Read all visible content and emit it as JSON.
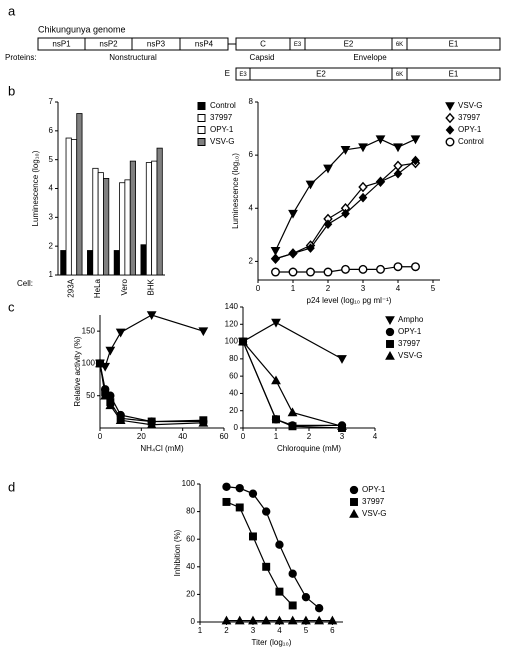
{
  "panel_labels": [
    "a",
    "b",
    "c",
    "d"
  ],
  "genome": {
    "title": "Chikungunya genome",
    "boxes": [
      "nsP1",
      "nsP2",
      "nsP3",
      "nsP4",
      "C",
      "E3",
      "E2",
      "6K",
      "E1"
    ],
    "row_label": "Proteins:",
    "groups": [
      "Nonstructural",
      "Capsid",
      "Envelope"
    ],
    "envelope_row": {
      "label": "E",
      "boxes": [
        "E3",
        "E2",
        "6K",
        "E1"
      ]
    }
  },
  "chart_data": [
    {
      "type": "bar",
      "ylabel": "Luminescence (log₁₀)",
      "xlabel": "Cell:",
      "categories": [
        "293A",
        "HeLa",
        "Vero",
        "BHK"
      ],
      "series": [
        {
          "name": "Control",
          "color": "#000000",
          "values": [
            1.85,
            1.85,
            1.85,
            2.05
          ]
        },
        {
          "name": "37997",
          "color": "#ffffff",
          "values": [
            5.75,
            4.7,
            4.2,
            4.9
          ]
        },
        {
          "name": "OPY-1",
          "color": "#ffffff",
          "values": [
            5.7,
            4.55,
            4.3,
            4.95
          ]
        },
        {
          "name": "VSV-G",
          "color": "#808080",
          "values": [
            6.6,
            4.35,
            4.95,
            5.4
          ]
        }
      ],
      "ylim": [
        1,
        7
      ],
      "yticks": [
        1,
        2,
        3,
        4,
        5,
        6,
        7
      ],
      "legend": "right"
    },
    {
      "type": "scatter",
      "xlabel": "p24 level (log₁₀ pg ml⁻¹)",
      "ylabel": "Luminescence (log₁₀)",
      "x": [
        0.5,
        1,
        1.5,
        2,
        2.5,
        3,
        3.5,
        4,
        4.5
      ],
      "series": [
        {
          "name": "VSV-G",
          "marker": "triangle-down",
          "color": "#000000",
          "values": [
            2.4,
            3.8,
            4.9,
            5.5,
            6.2,
            6.3,
            6.6,
            6.3,
            6.6
          ]
        },
        {
          "name": "37997",
          "marker": "diamond-open",
          "color": "#000000",
          "values": [
            2.1,
            2.3,
            2.6,
            3.6,
            4.0,
            4.8,
            5.0,
            5.6,
            5.7
          ]
        },
        {
          "name": "OPY-1",
          "marker": "diamond",
          "color": "#000000",
          "values": [
            2.1,
            2.3,
            2.5,
            3.4,
            3.8,
            4.4,
            5.0,
            5.3,
            5.8
          ]
        },
        {
          "name": "Control",
          "marker": "circle-open",
          "color": "#000000",
          "values": [
            1.6,
            1.6,
            1.6,
            1.6,
            1.7,
            1.7,
            1.7,
            1.8,
            1.8
          ]
        }
      ],
      "xlim": [
        0,
        5.2
      ],
      "ylim": [
        1.3,
        8
      ],
      "xticks": [
        0,
        1,
        2,
        3,
        4,
        5
      ],
      "yticks": [
        2,
        4,
        6,
        8
      ],
      "legend": "right"
    },
    {
      "type": "scatter",
      "xlabel": "NH₄Cl (mM)",
      "ylabel": "Relative activity (%)",
      "series": [
        {
          "marker": "triangle-down",
          "color": "#000000",
          "x": [
            0,
            2.5,
            5,
            10,
            25,
            50
          ],
          "values": [
            100,
            95,
            120,
            148,
            175,
            150
          ]
        },
        {
          "marker": "circle",
          "color": "#000000",
          "x": [
            0,
            2.5,
            5,
            10,
            25,
            50
          ],
          "values": [
            100,
            60,
            50,
            20,
            10,
            10
          ]
        },
        {
          "marker": "square",
          "color": "#000000",
          "x": [
            0,
            2.5,
            5,
            10,
            25,
            50
          ],
          "values": [
            100,
            55,
            40,
            15,
            10,
            12
          ]
        },
        {
          "marker": "triangle",
          "color": "#000000",
          "x": [
            0,
            2.5,
            5,
            10,
            25,
            50
          ],
          "values": [
            100,
            50,
            35,
            12,
            5,
            8
          ]
        }
      ],
      "xlim": [
        0,
        60
      ],
      "ylim": [
        0,
        175
      ],
      "xticks": [
        0,
        20,
        40,
        60
      ],
      "yticks": [
        50,
        100,
        150
      ]
    },
    {
      "type": "scatter",
      "xlabel": "Chloroquine (mM)",
      "series": [
        {
          "name": "Ampho",
          "marker": "triangle-down",
          "color": "#000000",
          "x": [
            0,
            1,
            3
          ],
          "values": [
            100,
            122,
            80
          ]
        },
        {
          "name": "OPY-1",
          "marker": "circle",
          "color": "#000000",
          "x": [
            0,
            1,
            1.5,
            3
          ],
          "values": [
            100,
            10,
            3,
            3
          ]
        },
        {
          "name": "37997",
          "marker": "square",
          "color": "#000000",
          "x": [
            0,
            1,
            1.5,
            3
          ],
          "values": [
            100,
            10,
            2,
            0
          ]
        },
        {
          "name": "VSV-G",
          "marker": "triangle",
          "color": "#000000",
          "x": [
            0,
            1,
            1.5,
            3
          ],
          "values": [
            100,
            55,
            18,
            2
          ]
        }
      ],
      "xlim": [
        0,
        4
      ],
      "ylim": [
        0,
        140
      ],
      "xticks": [
        0,
        1,
        2,
        3,
        4
      ],
      "yticks": [
        0,
        20,
        40,
        60,
        80,
        100,
        120,
        140
      ],
      "legend": "right"
    },
    {
      "type": "scatter",
      "xlabel": "Titer (log₁₀)",
      "ylabel": "Inhibition (%)",
      "series": [
        {
          "name": "OPY-1",
          "marker": "circle",
          "color": "#000000",
          "x": [
            2,
            2.5,
            3,
            3.5,
            4,
            4.5,
            5,
            5.5
          ],
          "values": [
            98,
            97,
            93,
            80,
            56,
            35,
            18,
            10
          ]
        },
        {
          "name": "37997",
          "marker": "square",
          "color": "#000000",
          "x": [
            2,
            2.5,
            3,
            3.5,
            4,
            4.5
          ],
          "values": [
            87,
            83,
            62,
            40,
            22,
            12
          ]
        },
        {
          "name": "VSV-G",
          "marker": "triangle",
          "color": "#000000",
          "x": [
            2,
            2.5,
            3,
            3.5,
            4,
            4.5,
            5,
            5.5,
            6
          ],
          "values": [
            1,
            1,
            1,
            1,
            1,
            1,
            1,
            1,
            1
          ]
        }
      ],
      "xlim": [
        1,
        6.4
      ],
      "ylim": [
        0,
        100
      ],
      "xticks": [
        1,
        2,
        3,
        4,
        5,
        6
      ],
      "yticks": [
        0,
        20,
        40,
        60,
        80,
        100
      ],
      "legend": "right"
    }
  ]
}
